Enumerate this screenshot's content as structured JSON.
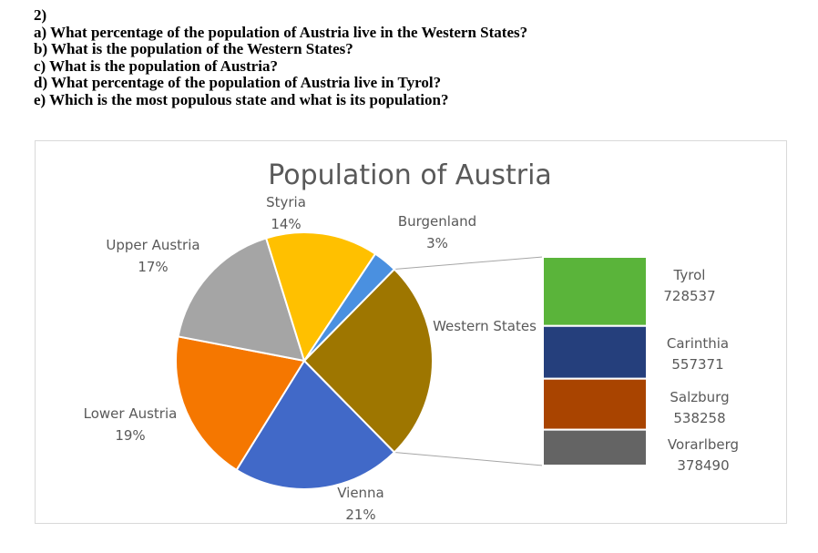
{
  "questions": {
    "number": "2)",
    "a": "a) What percentage of the population of Austria live in the Western States?",
    "b": "b) What is the population of the Western States?",
    "c": "c) What is the population of Austria?",
    "d": "d) What percentage of the population of Austria live in Tyrol?",
    "e": "e) Which is the most populous state and what is its population?"
  },
  "chart_data": {
    "type": "pie",
    "subtype": "pie-of-pie (bar of pie)",
    "title": "Population of Austria",
    "slices": [
      {
        "name": "Western States",
        "value": 25,
        "label": "Western States",
        "color": "#9e7600"
      },
      {
        "name": "Vienna",
        "value": 21,
        "label": "21%",
        "color": "#4169c8"
      },
      {
        "name": "Lower Austria",
        "value": 19,
        "label": "19%",
        "color": "#f57700"
      },
      {
        "name": "Upper Austria",
        "value": 17,
        "label": "17%",
        "color": "#a5a5a5"
      },
      {
        "name": "Styria",
        "value": 14,
        "label": "14%",
        "color": "#ffc000"
      },
      {
        "name": "Burgenland",
        "value": 3,
        "label": "3%",
        "color": "#4a90e0"
      }
    ],
    "secondary_bar": {
      "parent": "Western States",
      "segments": [
        {
          "name": "Tyrol",
          "value": 728537,
          "color": "#5ab43a"
        },
        {
          "name": "Carinthia",
          "value": 557371,
          "color": "#253f7c"
        },
        {
          "name": "Salzburg",
          "value": 538258,
          "color": "#a94400"
        },
        {
          "name": "Vorarlberg",
          "value": 378490,
          "color": "#646464"
        }
      ]
    }
  }
}
